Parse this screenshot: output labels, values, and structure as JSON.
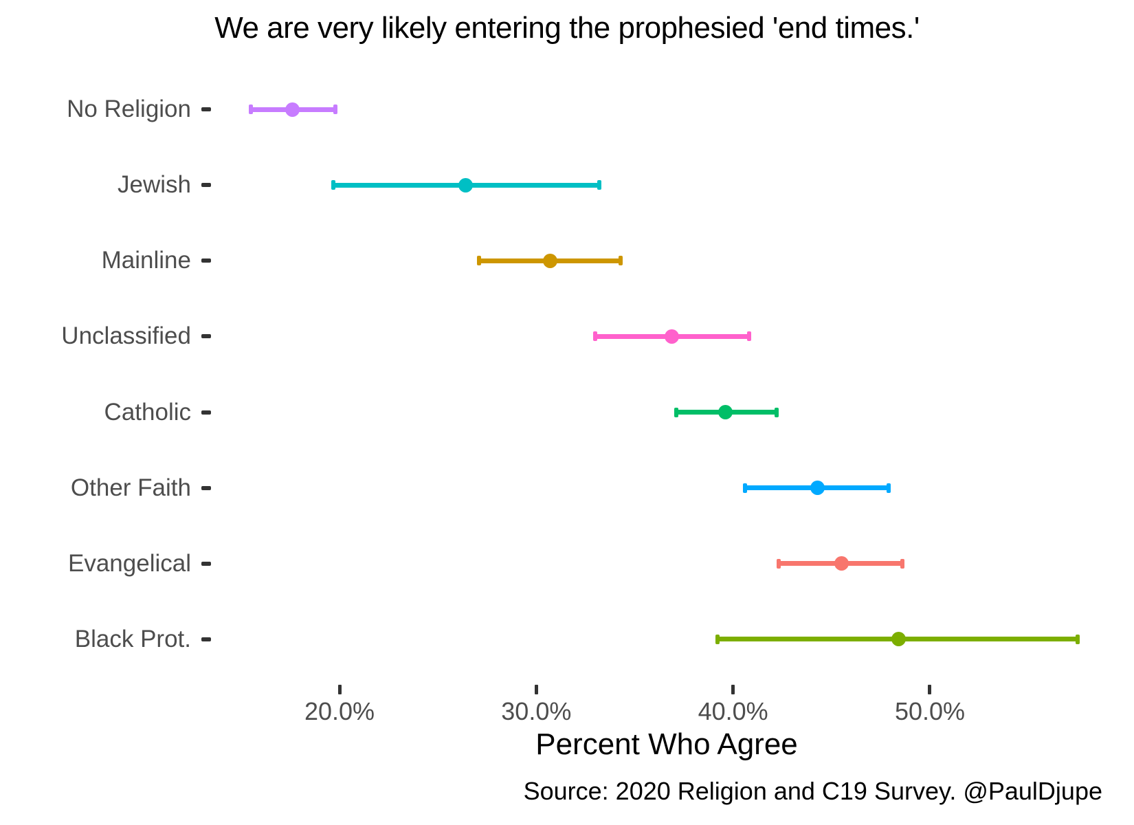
{
  "chart_data": {
    "type": "scatter",
    "subtype": "dot-with-confidence-interval",
    "title": "We are very likely entering the prophesied 'end times.'",
    "xlabel": "Percent Who Agree",
    "ylabel": "",
    "caption": "Source: 2020 Religion and C19 Survey. @PaulDjupe",
    "grid": false,
    "legend": "none",
    "xlim": [
      14.5,
      58.5
    ],
    "x_ticks": [
      {
        "value": 20,
        "label": "20.0%"
      },
      {
        "value": 30,
        "label": "30.0%"
      },
      {
        "value": 40,
        "label": "40.0%"
      },
      {
        "value": 50,
        "label": "50.0%"
      }
    ],
    "categories": [
      "No Religion",
      "Jewish",
      "Mainline",
      "Unclassified",
      "Catholic",
      "Other Faith",
      "Evangelical",
      "Black Prot."
    ],
    "points": [
      {
        "category": "No Religion",
        "value": 17.6,
        "ci_low": 15.5,
        "ci_high": 19.8,
        "color": "#C77CFF"
      },
      {
        "category": "Jewish",
        "value": 26.4,
        "ci_low": 19.7,
        "ci_high": 33.2,
        "color": "#00BFC4"
      },
      {
        "category": "Mainline",
        "value": 30.7,
        "ci_low": 27.1,
        "ci_high": 34.3,
        "color": "#CD9600"
      },
      {
        "category": "Unclassified",
        "value": 36.9,
        "ci_low": 33.0,
        "ci_high": 40.8,
        "color": "#FF61CC"
      },
      {
        "category": "Catholic",
        "value": 39.6,
        "ci_low": 37.1,
        "ci_high": 42.2,
        "color": "#00BE67"
      },
      {
        "category": "Other Faith",
        "value": 44.3,
        "ci_low": 40.6,
        "ci_high": 47.9,
        "color": "#00A9FF"
      },
      {
        "category": "Evangelical",
        "value": 45.5,
        "ci_low": 42.3,
        "ci_high": 48.6,
        "color": "#F8766D"
      },
      {
        "category": "Black Prot.",
        "value": 48.4,
        "ci_low": 39.2,
        "ci_high": 57.5,
        "color": "#7CAE00"
      }
    ],
    "colors": {
      "background": "#ffffff",
      "axis_text": "#4d4d4d",
      "tick_mark": "#333333",
      "title_text": "#000000"
    }
  }
}
